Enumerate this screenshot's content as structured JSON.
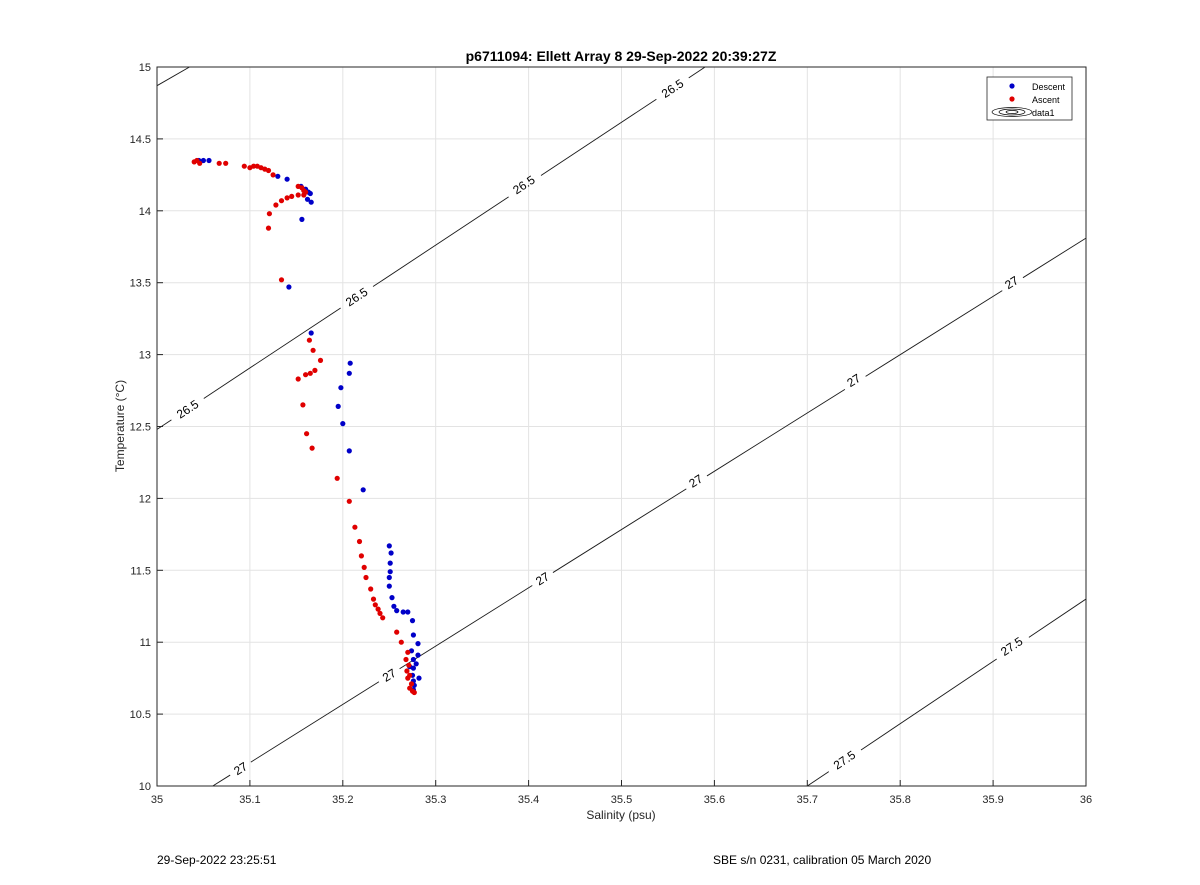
{
  "chart_data": {
    "type": "scatter",
    "title": "p6711094: Ellett Array 8 29-Sep-2022 20:39:27Z",
    "xlabel": "Salinity (psu)",
    "ylabel": "Temperature (°C)",
    "xlim": [
      35,
      36
    ],
    "ylim": [
      10,
      15
    ],
    "xticks": [
      "35",
      "35.1",
      "35.2",
      "35.3",
      "35.4",
      "35.5",
      "35.6",
      "35.7",
      "35.8",
      "35.9",
      "36"
    ],
    "yticks": [
      "10",
      "10.5",
      "11",
      "11.5",
      "12",
      "12.5",
      "13",
      "13.5",
      "14",
      "14.5",
      "15"
    ],
    "grid": true,
    "legend_position": "top-right",
    "legend": [
      "Descent",
      "Ascent",
      "data1"
    ],
    "series": [
      {
        "name": "Descent",
        "color": "#0000c8",
        "points": [
          [
            35.045,
            14.35
          ],
          [
            35.05,
            14.35
          ],
          [
            35.056,
            14.35
          ],
          [
            35.13,
            14.24
          ],
          [
            35.14,
            14.22
          ],
          [
            35.155,
            14.17
          ],
          [
            35.16,
            14.15
          ],
          [
            35.163,
            14.13
          ],
          [
            35.165,
            14.12
          ],
          [
            35.162,
            14.08
          ],
          [
            35.166,
            14.06
          ],
          [
            35.156,
            13.94
          ],
          [
            35.142,
            13.47
          ],
          [
            35.166,
            13.15
          ],
          [
            35.208,
            12.94
          ],
          [
            35.207,
            12.87
          ],
          [
            35.198,
            12.77
          ],
          [
            35.195,
            12.64
          ],
          [
            35.2,
            12.52
          ],
          [
            35.207,
            12.33
          ],
          [
            35.222,
            12.06
          ],
          [
            35.25,
            11.67
          ],
          [
            35.252,
            11.62
          ],
          [
            35.251,
            11.55
          ],
          [
            35.251,
            11.49
          ],
          [
            35.25,
            11.45
          ],
          [
            35.25,
            11.39
          ],
          [
            35.253,
            11.31
          ],
          [
            35.255,
            11.25
          ],
          [
            35.258,
            11.22
          ],
          [
            35.265,
            11.21
          ],
          [
            35.27,
            11.21
          ],
          [
            35.275,
            11.15
          ],
          [
            35.276,
            11.05
          ],
          [
            35.281,
            10.99
          ],
          [
            35.274,
            10.94
          ],
          [
            35.281,
            10.91
          ],
          [
            35.276,
            10.88
          ],
          [
            35.279,
            10.85
          ],
          [
            35.272,
            10.83
          ],
          [
            35.276,
            10.82
          ],
          [
            35.275,
            10.77
          ],
          [
            35.282,
            10.75
          ],
          [
            35.276,
            10.73
          ],
          [
            35.277,
            10.7
          ],
          [
            35.276,
            10.67
          ]
        ]
      },
      {
        "name": "Ascent",
        "color": "#e00000",
        "points": [
          [
            35.04,
            14.34
          ],
          [
            35.043,
            14.35
          ],
          [
            35.046,
            14.33
          ],
          [
            35.067,
            14.33
          ],
          [
            35.074,
            14.33
          ],
          [
            35.094,
            14.31
          ],
          [
            35.1,
            14.3
          ],
          [
            35.104,
            14.31
          ],
          [
            35.108,
            14.31
          ],
          [
            35.112,
            14.3
          ],
          [
            35.116,
            14.29
          ],
          [
            35.12,
            14.28
          ],
          [
            35.125,
            14.25
          ],
          [
            35.152,
            14.17
          ],
          [
            35.156,
            14.16
          ],
          [
            35.158,
            14.14
          ],
          [
            35.16,
            14.13
          ],
          [
            35.158,
            14.11
          ],
          [
            35.152,
            14.11
          ],
          [
            35.145,
            14.1
          ],
          [
            35.14,
            14.09
          ],
          [
            35.134,
            14.07
          ],
          [
            35.128,
            14.04
          ],
          [
            35.121,
            13.98
          ],
          [
            35.12,
            13.88
          ],
          [
            35.134,
            13.52
          ],
          [
            35.164,
            13.1
          ],
          [
            35.168,
            13.03
          ],
          [
            35.176,
            12.96
          ],
          [
            35.17,
            12.89
          ],
          [
            35.165,
            12.87
          ],
          [
            35.16,
            12.86
          ],
          [
            35.152,
            12.83
          ],
          [
            35.157,
            12.65
          ],
          [
            35.161,
            12.45
          ],
          [
            35.167,
            12.35
          ],
          [
            35.194,
            12.14
          ],
          [
            35.207,
            11.98
          ],
          [
            35.213,
            11.8
          ],
          [
            35.218,
            11.7
          ],
          [
            35.22,
            11.6
          ],
          [
            35.223,
            11.52
          ],
          [
            35.225,
            11.45
          ],
          [
            35.23,
            11.37
          ],
          [
            35.233,
            11.3
          ],
          [
            35.235,
            11.26
          ],
          [
            35.238,
            11.23
          ],
          [
            35.24,
            11.2
          ],
          [
            35.243,
            11.17
          ],
          [
            35.258,
            11.07
          ],
          [
            35.263,
            11.0
          ],
          [
            35.27,
            10.93
          ],
          [
            35.268,
            10.88
          ],
          [
            35.271,
            10.84
          ],
          [
            35.269,
            10.8
          ],
          [
            35.272,
            10.77
          ],
          [
            35.27,
            10.75
          ],
          [
            35.274,
            10.71
          ],
          [
            35.272,
            10.68
          ],
          [
            35.275,
            10.66
          ],
          [
            35.277,
            10.65
          ]
        ]
      }
    ],
    "isopycnals": [
      {
        "label": "26.5",
        "points": [
          [
            35.0,
            12.48
          ],
          [
            35.59,
            15.0
          ]
        ],
        "label_positions": [
          [
            35.033,
            12.62
          ],
          [
            35.215,
            13.4
          ],
          [
            35.395,
            14.18
          ],
          [
            35.555,
            14.85
          ]
        ]
      },
      {
        "label": "27",
        "points": [
          [
            35.06,
            10.0
          ],
          [
            36.0,
            13.81
          ]
        ],
        "label_positions": [
          [
            35.09,
            10.12
          ],
          [
            35.25,
            10.77
          ],
          [
            35.415,
            11.44
          ],
          [
            35.58,
            12.12
          ],
          [
            35.75,
            12.82
          ],
          [
            35.92,
            13.5
          ]
        ]
      },
      {
        "label": "27.5",
        "points": [
          [
            35.7,
            10.0
          ],
          [
            36.0,
            11.3
          ]
        ],
        "label_positions": [
          [
            35.74,
            10.18
          ],
          [
            35.92,
            10.97
          ]
        ]
      },
      {
        "label": "",
        "points": [
          [
            35.0,
            14.87
          ],
          [
            35.035,
            15.0
          ]
        ],
        "label_positions": []
      }
    ]
  },
  "footer": {
    "timestamp": "29-Sep-2022 23:25:51",
    "instrument": "SBE s/n 0231, calibration 05 March 2020"
  }
}
